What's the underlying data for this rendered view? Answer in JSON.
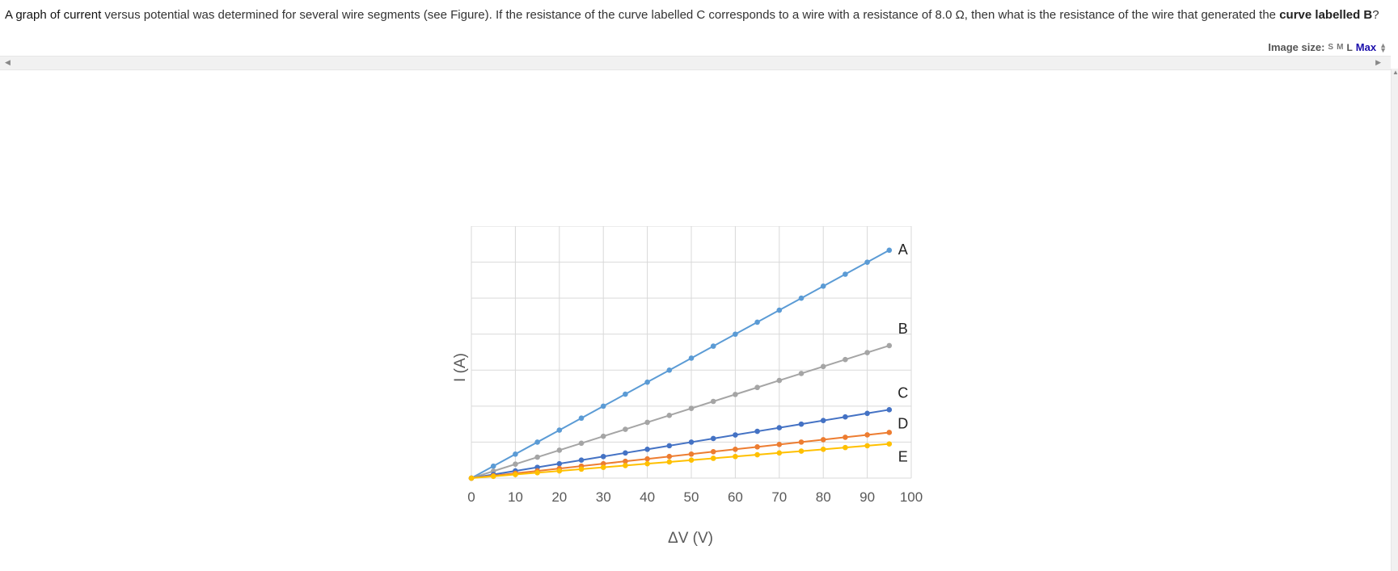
{
  "question": {
    "part1": "A graph of ",
    "part2": "current",
    "part3": " versus potential was determined for several wire segments (see Figure). If the resistance of the curve labelled C corresponds to a wire with a resistance of 8.0 Ω, then what is the resistance of the wire that generated the ",
    "part4": "curve labelled B",
    "part5": "?"
  },
  "image_size": {
    "label": "Image size:",
    "s": "S",
    "m": "M",
    "l": "L",
    "max": "Max"
  },
  "chart_data": {
    "type": "line",
    "xlabel": "ΔV (V)",
    "ylabel": "I (A)",
    "xlim": [
      0,
      100
    ],
    "x_ticks": [
      "0",
      "10",
      "20",
      "30",
      "40",
      "50",
      "60",
      "70",
      "80",
      "90",
      "100"
    ],
    "y_tick_labels_shown": false,
    "grid": true,
    "x": [
      0,
      5,
      10,
      15,
      20,
      25,
      30,
      35,
      40,
      45,
      50,
      55,
      60,
      65,
      70,
      75,
      80,
      85,
      90,
      95
    ],
    "series": [
      {
        "name": "A",
        "color": "#5b9bd5",
        "slope": 0.1333
      },
      {
        "name": "B",
        "color": "#a5a5a5",
        "slope": 0.0775
      },
      {
        "name": "C",
        "color": "#4472c4",
        "slope": 0.04
      },
      {
        "name": "D",
        "color": "#ed7d31",
        "slope": 0.0267
      },
      {
        "name": "E",
        "color": "#ffc000",
        "slope": 0.02
      }
    ]
  }
}
